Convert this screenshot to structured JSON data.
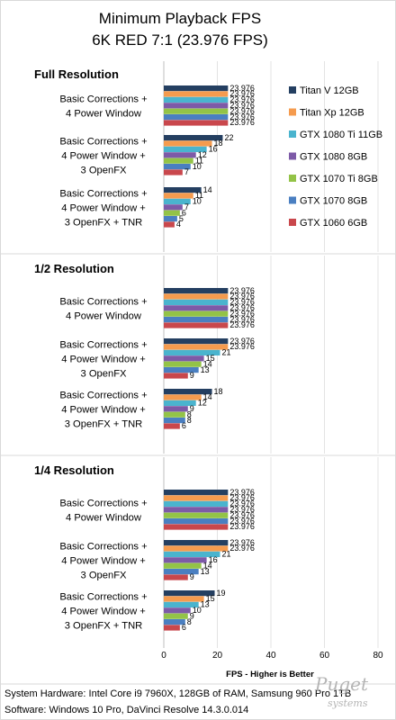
{
  "chart_data": {
    "type": "bar",
    "orientation": "horizontal",
    "title": [
      "Minimum Playback FPS",
      "6K RED 7:1 (23.976 FPS)"
    ],
    "xlabel": "FPS - Higher is Better",
    "xlim": [
      0,
      80
    ],
    "xticks": [
      "0",
      "20",
      "40",
      "60",
      "80"
    ],
    "grid": true,
    "legend_position": "right",
    "series": [
      {
        "name": "Titan V 12GB",
        "color": "#243f61"
      },
      {
        "name": "Titan Xp 12GB",
        "color": "#f59b4e"
      },
      {
        "name": "GTX 1080 Ti 11GB",
        "color": "#4ab4ce"
      },
      {
        "name": "GTX 1080 8GB",
        "color": "#7d5aa7"
      },
      {
        "name": "GTX 1070 Ti 8GB",
        "color": "#93c347"
      },
      {
        "name": "GTX 1070 8GB",
        "color": "#4a7fc1"
      },
      {
        "name": "GTX 1060 6GB",
        "color": "#c9474c"
      }
    ],
    "sections": [
      {
        "label": "Full Resolution",
        "groups": [
          {
            "label": [
              "Basic Corrections +",
              "4 Power Window"
            ],
            "values": [
              23.976,
              23.976,
              23.976,
              23.976,
              23.976,
              23.976,
              23.976
            ],
            "labels": [
              "23.976",
              "23.976",
              "23.976",
              "23.976",
              "23.976",
              "23.976",
              "23.976"
            ]
          },
          {
            "label": [
              "Basic Corrections +",
              "4 Power Window +",
              "3 OpenFX"
            ],
            "values": [
              22,
              18,
              16,
              12,
              11,
              10,
              7
            ],
            "labels": [
              "22",
              "18",
              "16",
              "12",
              "11",
              "10",
              "7"
            ]
          },
          {
            "label": [
              "Basic Corrections +",
              "4 Power Window +",
              "3 OpenFX + TNR"
            ],
            "values": [
              14,
              11,
              10,
              7,
              6,
              5,
              4
            ],
            "labels": [
              "14",
              "11",
              "10",
              "7",
              "6",
              "5",
              "4"
            ]
          }
        ]
      },
      {
        "label": "1/2 Resolution",
        "groups": [
          {
            "label": [
              "Basic Corrections +",
              "4 Power Window"
            ],
            "values": [
              23.976,
              23.976,
              23.976,
              23.976,
              23.976,
              23.976,
              23.976
            ],
            "labels": [
              "23.976",
              "23.976",
              "23.976",
              "23.976",
              "23.976",
              "23.976",
              "23.976"
            ]
          },
          {
            "label": [
              "Basic Corrections +",
              "4 Power Window +",
              "3 OpenFX"
            ],
            "values": [
              23.976,
              23.976,
              21,
              15,
              14,
              13,
              9
            ],
            "labels": [
              "23.976",
              "23.976",
              "21",
              "15",
              "14",
              "13",
              "9"
            ]
          },
          {
            "label": [
              "Basic Corrections +",
              "4 Power Window +",
              "3 OpenFX + TNR"
            ],
            "values": [
              18,
              14,
              12,
              9,
              8,
              8,
              6
            ],
            "labels": [
              "18",
              "14",
              "12",
              "9",
              "8",
              "8",
              "6"
            ]
          }
        ]
      },
      {
        "label": "1/4 Resolution",
        "groups": [
          {
            "label": [
              "Basic Corrections +",
              "4 Power Window"
            ],
            "values": [
              23.976,
              23.976,
              23.976,
              23.976,
              23.976,
              23.976,
              23.976
            ],
            "labels": [
              "23.976",
              "23.976",
              "23.976",
              "23.976",
              "23.976",
              "23.976",
              "23.976"
            ]
          },
          {
            "label": [
              "Basic Corrections +",
              "4 Power Window +",
              "3 OpenFX"
            ],
            "values": [
              23.976,
              23.976,
              21,
              16,
              14,
              13,
              9
            ],
            "labels": [
              "23.976",
              "23.976",
              "21",
              "16",
              "14",
              "13",
              "9"
            ]
          },
          {
            "label": [
              "Basic Corrections +",
              "4 Power Window +",
              "3 OpenFX + TNR"
            ],
            "values": [
              19,
              15,
              13,
              10,
              9,
              8,
              6
            ],
            "labels": [
              "19",
              "15",
              "13",
              "10",
              "9",
              "8",
              "6"
            ]
          }
        ]
      }
    ]
  },
  "footer": {
    "line1": "System Hardware: Intel Core i9 7960X,  128GB of RAM, Samsung 960 Pro 1TB",
    "line2": "Software: Windows 10 Pro, DaVinci Resolve 14.3.0.014"
  },
  "logo": {
    "name": "Puget",
    "sub": "systems"
  }
}
